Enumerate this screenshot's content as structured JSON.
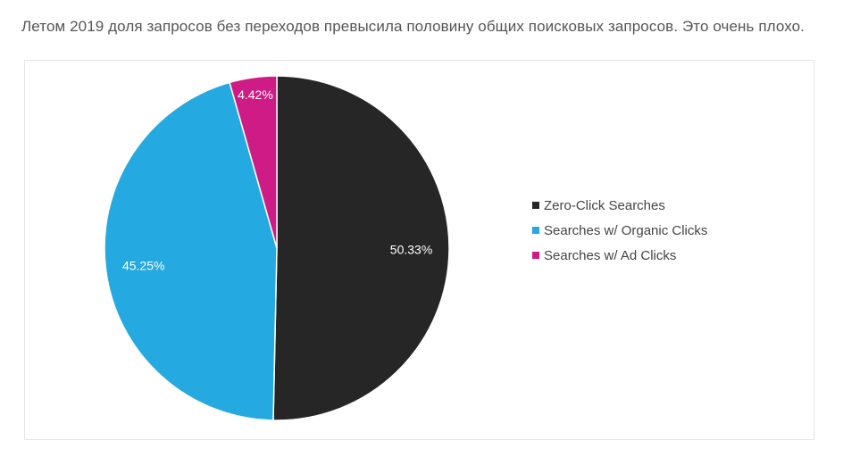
{
  "page": {
    "caption": "Летом 2019 доля запросов без переходов превысила половину общих поисковых запросов. Это очень плохо."
  },
  "chart_data": {
    "type": "pie",
    "title": "",
    "legend_position": "right",
    "slices": [
      {
        "label": "Zero-Click Searches",
        "value": 50.33,
        "value_label": "50.33%",
        "color": "#262626"
      },
      {
        "label": "Searches w/ Organic Clicks",
        "value": 45.25,
        "value_label": "45.25%",
        "color": "#24a9e1"
      },
      {
        "label": "Searches w/ Ad Clicks",
        "value": 4.42,
        "value_label": "4.42%",
        "color": "#cf1b86"
      }
    ]
  }
}
